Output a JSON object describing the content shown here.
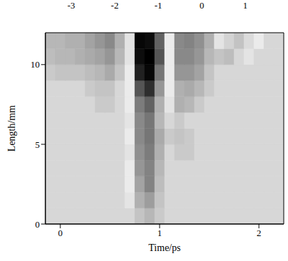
{
  "chart_data": {
    "type": "heatmap",
    "x_label": "Time/ps",
    "y_label": "Length/mm",
    "xlim": [
      -0.15,
      2.25
    ],
    "xticks": [
      0,
      1,
      2
    ],
    "ylim": [
      0,
      12
    ],
    "yticks": [
      0,
      5,
      10
    ],
    "x": [
      -0.1,
      0.0,
      0.1,
      0.2,
      0.3,
      0.4,
      0.5,
      0.6,
      0.7,
      0.8,
      0.9,
      1.0,
      1.1,
      1.2,
      1.3,
      1.4,
      1.5,
      1.6,
      1.7,
      1.8,
      1.9,
      2.0,
      2.1,
      2.2
    ],
    "y": [
      0.5,
      1.5,
      2.5,
      3.5,
      4.5,
      5.5,
      6.5,
      7.5,
      8.5,
      9.5,
      10.5,
      11.5
    ],
    "cells": [
      [
        0,
        0,
        0,
        0,
        0,
        0,
        0,
        0,
        0,
        -0.3,
        -0.5,
        -0.2,
        0,
        0,
        0,
        0,
        0,
        0,
        0,
        0,
        0,
        0,
        0,
        0
      ],
      [
        0,
        0,
        0,
        0,
        0,
        0,
        0,
        0,
        0.2,
        -0.6,
        -0.9,
        -0.3,
        0,
        0,
        0,
        0,
        0,
        0,
        0,
        0,
        0,
        0,
        0,
        0
      ],
      [
        0,
        0,
        0,
        0,
        0,
        0,
        0,
        0,
        0.3,
        -0.8,
        -1.3,
        -0.4,
        0,
        0,
        0,
        0,
        0,
        0,
        0,
        0,
        0,
        0,
        0,
        0
      ],
      [
        0,
        0,
        0,
        0,
        0,
        0,
        0,
        0,
        0.3,
        -1,
        -1.3,
        -0.5,
        0,
        0,
        0,
        0,
        0,
        0,
        0,
        0,
        0,
        0,
        0,
        0
      ],
      [
        0,
        0,
        0,
        0,
        0,
        0,
        0,
        0,
        0.4,
        -1.1,
        -1.4,
        -0.6,
        0,
        -0.2,
        -0.2,
        0,
        0,
        0,
        0,
        0,
        0,
        0,
        0,
        0
      ],
      [
        0,
        0,
        0,
        0,
        0,
        0,
        0,
        0,
        0.3,
        -1.2,
        -1.5,
        -0.7,
        -0.2,
        -0.3,
        -0.2,
        0,
        0,
        0,
        0,
        0,
        0,
        0,
        0,
        0
      ],
      [
        0,
        0,
        0,
        0,
        0,
        0,
        0,
        0,
        0.2,
        -1.2,
        -1.5,
        -0.5,
        0,
        -0.2,
        0,
        0,
        0,
        0,
        0,
        0,
        0,
        0,
        0,
        0
      ],
      [
        0,
        0,
        0,
        0,
        0,
        -0.2,
        -0.2,
        0,
        0.3,
        -1.4,
        -1.8,
        -0.6,
        0.2,
        -0.6,
        -0.5,
        -0.2,
        0,
        0,
        0,
        0,
        0,
        0,
        0,
        0
      ],
      [
        0,
        0,
        0,
        0,
        -0.2,
        -0.3,
        -0.3,
        0,
        0.3,
        -2,
        -2.6,
        -1,
        0.3,
        -0.6,
        -0.7,
        -0.5,
        -0.2,
        0,
        0,
        0,
        0,
        0,
        0,
        0
      ],
      [
        -0.2,
        -0.3,
        -0.3,
        -0.3,
        -0.4,
        -0.5,
        -0.7,
        -0.3,
        0.3,
        -2.8,
        -3.2,
        -1.5,
        0.3,
        -1,
        -1,
        -0.8,
        -0.3,
        0,
        0,
        0,
        0,
        0,
        0,
        0
      ],
      [
        -0.4,
        -0.5,
        -0.5,
        -0.6,
        -0.7,
        -0.8,
        -1,
        -0.5,
        0.4,
        -3.1,
        -3.3,
        -2,
        0.3,
        -1.2,
        -1.2,
        -1,
        -0.5,
        -0.3,
        -0.4,
        0,
        0.2,
        0,
        0,
        0
      ],
      [
        -0.5,
        -0.5,
        -0.6,
        -0.6,
        -0.8,
        -1,
        -1.2,
        -0.6,
        0.4,
        -3.2,
        -3.1,
        -1.8,
        0.3,
        -1.2,
        -1.3,
        -1.1,
        -0.6,
        0.2,
        0.6,
        0.8,
        0.5,
        0.3,
        0,
        0
      ]
    ],
    "colorbar": {
      "range": [
        -3.3,
        1.85
      ],
      "ticks": [
        -3,
        -2,
        -1,
        0,
        1
      ]
    }
  }
}
